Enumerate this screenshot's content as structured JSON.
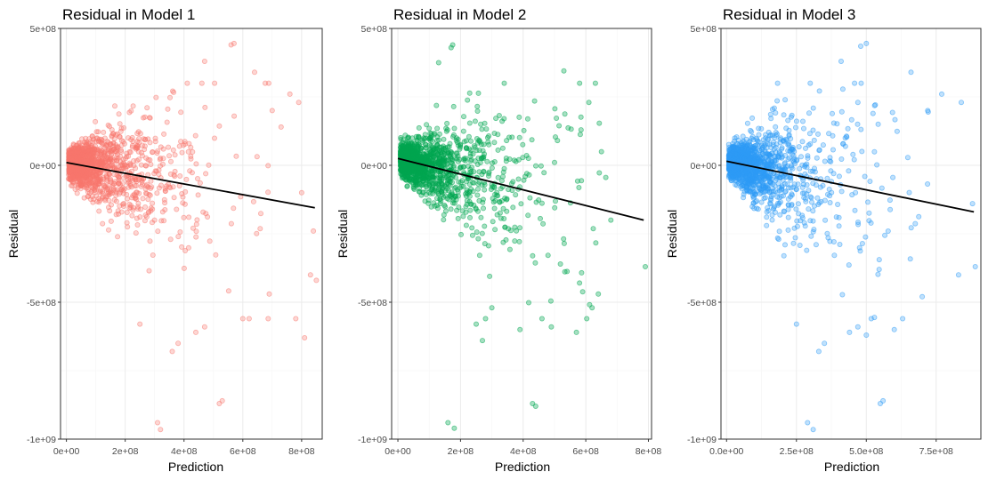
{
  "chart_data": [
    {
      "type": "scatter",
      "title": "Residual in Model 1",
      "xlabel": "Prediction",
      "ylabel": "Residual",
      "xlim": [
        -20000000,
        870000000
      ],
      "ylim": [
        -1000000000,
        500000000
      ],
      "x_ticks": [
        {
          "value": 0,
          "label": "0e+00"
        },
        {
          "value": 200000000,
          "label": "2e+08"
        },
        {
          "value": 400000000,
          "label": "4e+08"
        },
        {
          "value": 600000000,
          "label": "6e+08"
        },
        {
          "value": 800000000,
          "label": "8e+08"
        }
      ],
      "y_ticks": [
        {
          "value": 500000000,
          "label": "5e+08"
        },
        {
          "value": 0,
          "label": "0e+00"
        },
        {
          "value": -500000000,
          "label": "-5e+08"
        },
        {
          "value": -1000000000,
          "label": "-1e+09"
        }
      ],
      "point_color": "#F8766D",
      "point_fill_opacity": 0.3,
      "fit_line": {
        "x": [
          0,
          845000000
        ],
        "y": [
          10000000,
          -155000000
        ],
        "color": "#000000"
      },
      "outliers": [
        [
          560000000,
          440000000
        ],
        [
          570000000,
          445000000
        ],
        [
          470000000,
          380000000
        ],
        [
          640000000,
          340000000
        ],
        [
          310000000,
          -940000000
        ],
        [
          320000000,
          -965000000
        ],
        [
          520000000,
          -870000000
        ],
        [
          530000000,
          -860000000
        ],
        [
          250000000,
          -580000000
        ],
        [
          360000000,
          -680000000
        ],
        [
          380000000,
          -650000000
        ],
        [
          600000000,
          -560000000
        ],
        [
          690000000,
          -470000000
        ],
        [
          830000000,
          -400000000
        ],
        [
          850000000,
          -420000000
        ],
        [
          780000000,
          -560000000
        ],
        [
          810000000,
          -630000000
        ],
        [
          760000000,
          260000000
        ],
        [
          790000000,
          230000000
        ],
        [
          700000000,
          200000000
        ],
        [
          730000000,
          140000000
        ],
        [
          800000000,
          -100000000
        ],
        [
          840000000,
          -240000000
        ],
        [
          440000000,
          -610000000
        ],
        [
          470000000,
          -590000000
        ]
      ],
      "seed": 11
    },
    {
      "type": "scatter",
      "title": "Residual in Model 2",
      "xlabel": "Prediction",
      "ylabel": "Residual",
      "xlim": [
        -20000000,
        810000000
      ],
      "ylim": [
        -1000000000,
        500000000
      ],
      "x_ticks": [
        {
          "value": 0,
          "label": "0e+00"
        },
        {
          "value": 200000000,
          "label": "2e+08"
        },
        {
          "value": 400000000,
          "label": "4e+08"
        },
        {
          "value": 600000000,
          "label": "6e+08"
        },
        {
          "value": 800000000,
          "label": "8e+08"
        }
      ],
      "y_ticks": [
        {
          "value": 500000000,
          "label": "5e+08"
        },
        {
          "value": 0,
          "label": "0e+00"
        },
        {
          "value": -500000000,
          "label": "-5e+08"
        },
        {
          "value": -1000000000,
          "label": "-1e+09"
        }
      ],
      "point_color": "#00A651",
      "point_fill_opacity": 0.35,
      "fit_line": {
        "x": [
          0,
          785000000
        ],
        "y": [
          25000000,
          -200000000
        ],
        "color": "#000000"
      },
      "outliers": [
        [
          170000000,
          430000000
        ],
        [
          175000000,
          440000000
        ],
        [
          130000000,
          375000000
        ],
        [
          530000000,
          345000000
        ],
        [
          160000000,
          -940000000
        ],
        [
          180000000,
          -960000000
        ],
        [
          430000000,
          -870000000
        ],
        [
          440000000,
          -880000000
        ],
        [
          250000000,
          -580000000
        ],
        [
          270000000,
          -640000000
        ],
        [
          390000000,
          -600000000
        ],
        [
          570000000,
          -610000000
        ],
        [
          640000000,
          -470000000
        ],
        [
          790000000,
          -370000000
        ],
        [
          580000000,
          -430000000
        ],
        [
          620000000,
          -520000000
        ],
        [
          610000000,
          230000000
        ],
        [
          650000000,
          50000000
        ],
        [
          680000000,
          -200000000
        ],
        [
          280000000,
          -560000000
        ],
        [
          300000000,
          -520000000
        ],
        [
          460000000,
          -560000000
        ],
        [
          490000000,
          -590000000
        ]
      ],
      "seed": 22
    },
    {
      "type": "scatter",
      "title": "Residual in Model 3",
      "xlabel": "Prediction",
      "ylabel": "Residual",
      "xlim": [
        -20000000,
        910000000
      ],
      "ylim": [
        -1000000000,
        500000000
      ],
      "x_ticks": [
        {
          "value": 0,
          "label": "0.0e+00"
        },
        {
          "value": 250000000,
          "label": "2.5e+08"
        },
        {
          "value": 500000000,
          "label": "5.0e+08"
        },
        {
          "value": 750000000,
          "label": "7.5e+08"
        }
      ],
      "y_ticks": [
        {
          "value": 500000000,
          "label": "5e+08"
        },
        {
          "value": 0,
          "label": "0e+00"
        },
        {
          "value": -500000000,
          "label": "-5e+08"
        },
        {
          "value": -1000000000,
          "label": "-1e+09"
        }
      ],
      "point_color": "#2E9BF5",
      "point_fill_opacity": 0.3,
      "fit_line": {
        "x": [
          0,
          885000000
        ],
        "y": [
          15000000,
          -170000000
        ],
        "color": "#000000"
      },
      "outliers": [
        [
          480000000,
          435000000
        ],
        [
          500000000,
          445000000
        ],
        [
          410000000,
          380000000
        ],
        [
          660000000,
          340000000
        ],
        [
          290000000,
          -940000000
        ],
        [
          310000000,
          -965000000
        ],
        [
          550000000,
          -870000000
        ],
        [
          560000000,
          -860000000
        ],
        [
          250000000,
          -580000000
        ],
        [
          330000000,
          -680000000
        ],
        [
          350000000,
          -650000000
        ],
        [
          630000000,
          -560000000
        ],
        [
          700000000,
          -480000000
        ],
        [
          830000000,
          -400000000
        ],
        [
          890000000,
          -370000000
        ],
        [
          770000000,
          260000000
        ],
        [
          840000000,
          230000000
        ],
        [
          720000000,
          200000000
        ],
        [
          880000000,
          -140000000
        ],
        [
          440000000,
          -610000000
        ],
        [
          470000000,
          -590000000
        ],
        [
          500000000,
          -620000000
        ],
        [
          600000000,
          -600000000
        ]
      ],
      "seed": 33
    }
  ]
}
